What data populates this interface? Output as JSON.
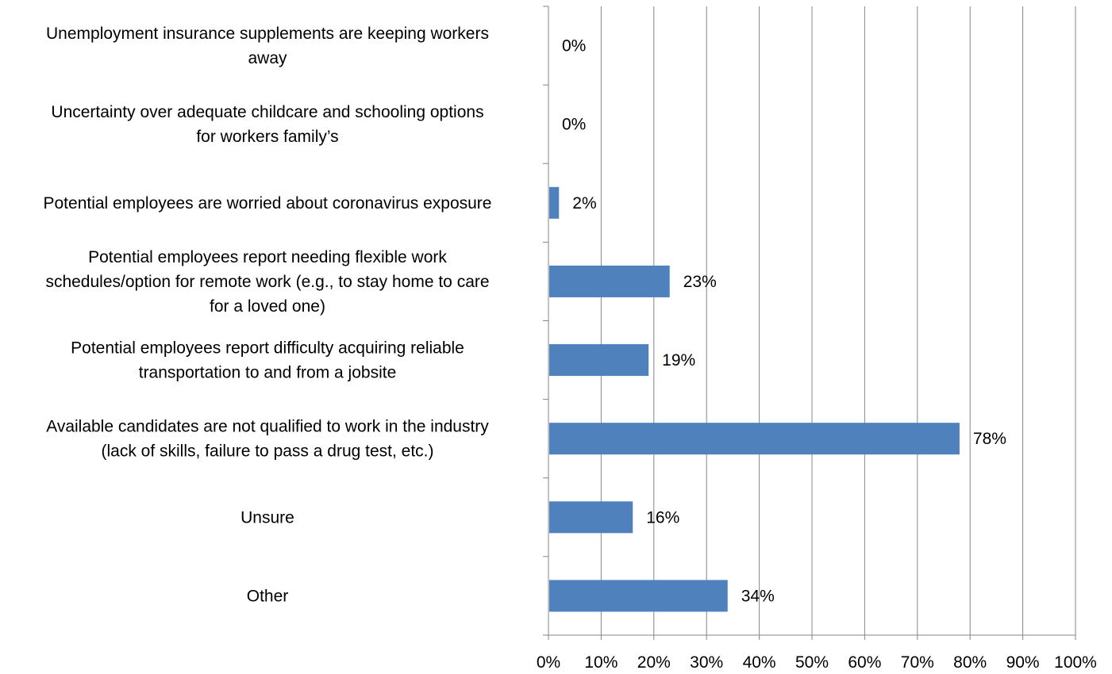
{
  "chart_data": {
    "type": "bar",
    "orientation": "horizontal",
    "categories": [
      [
        "Unemployment insurance supplements are keeping workers",
        "away"
      ],
      [
        "Uncertainty over adequate childcare and schooling options",
        "for workers family’s"
      ],
      [
        "Potential employees are worried about coronavirus exposure"
      ],
      [
        "Potential employees report needing flexible work",
        "schedules/option for remote work (e.g., to stay home to care",
        "for a loved one)"
      ],
      [
        "Potential employees report difficulty acquiring reliable",
        "transportation to and from a jobsite"
      ],
      [
        "Available candidates are not qualified to work in the industry",
        "(lack of skills, failure to pass a drug test, etc.)"
      ],
      [
        "Unsure"
      ],
      [
        "Other"
      ]
    ],
    "values": [
      0,
      0,
      2,
      23,
      19,
      78,
      16,
      34
    ],
    "data_labels": [
      "0%",
      "0%",
      "2%",
      "23%",
      "19%",
      "78%",
      "16%",
      "34%"
    ],
    "xlim": [
      0,
      100
    ],
    "x_ticks": [
      0,
      10,
      20,
      30,
      40,
      50,
      60,
      70,
      80,
      90,
      100
    ],
    "x_tick_labels": [
      "0%",
      "10%",
      "20%",
      "30%",
      "40%",
      "50%",
      "60%",
      "70%",
      "80%",
      "90%",
      "100%"
    ],
    "grid": "vertical",
    "legend": "none",
    "colors": {
      "bar": "#4f81bd",
      "grid": "#868686",
      "axis": "#868686"
    }
  }
}
